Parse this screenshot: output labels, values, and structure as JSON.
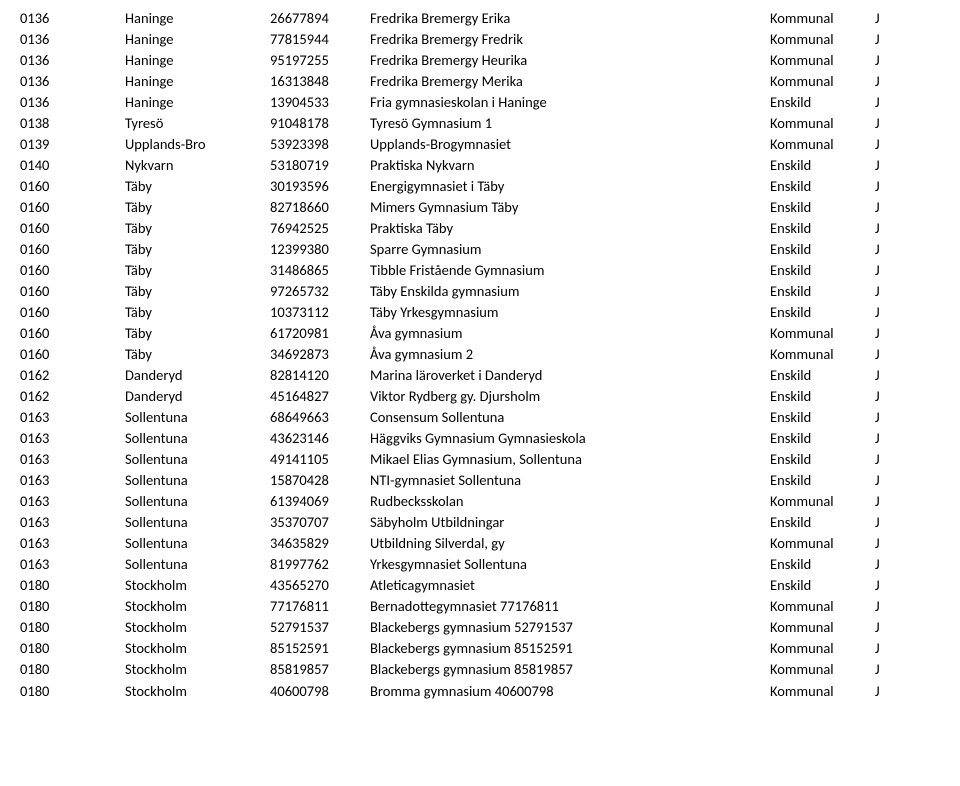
{
  "table": {
    "rows": [
      [
        "0136",
        "Haninge",
        "26677894",
        "Fredrika Bremergy Erika",
        "Kommunal",
        "J"
      ],
      [
        "0136",
        "Haninge",
        "77815944",
        "Fredrika Bremergy Fredrik",
        "Kommunal",
        "J"
      ],
      [
        "0136",
        "Haninge",
        "95197255",
        "Fredrika Bremergy Heurika",
        "Kommunal",
        "J"
      ],
      [
        "0136",
        "Haninge",
        "16313848",
        "Fredrika Bremergy Merika",
        "Kommunal",
        "J"
      ],
      [
        "0136",
        "Haninge",
        "13904533",
        "Fria gymnasieskolan i Haninge",
        "Enskild",
        "J"
      ],
      [
        "0138",
        "Tyresö",
        "91048178",
        "Tyresö Gymnasium 1",
        "Kommunal",
        "J"
      ],
      [
        "0139",
        "Upplands-Bro",
        "53923398",
        "Upplands-Brogymnasiet",
        "Kommunal",
        "J"
      ],
      [
        "0140",
        "Nykvarn",
        "53180719",
        "Praktiska Nykvarn",
        "Enskild",
        "J"
      ],
      [
        "0160",
        "Täby",
        "30193596",
        "Energigymnasiet i Täby",
        "Enskild",
        "J"
      ],
      [
        "0160",
        "Täby",
        "82718660",
        "Mimers Gymnasium Täby",
        "Enskild",
        "J"
      ],
      [
        "0160",
        "Täby",
        "76942525",
        "Praktiska Täby",
        "Enskild",
        "J"
      ],
      [
        "0160",
        "Täby",
        "12399380",
        "Sparre Gymnasium",
        "Enskild",
        "J"
      ],
      [
        "0160",
        "Täby",
        "31486865",
        "Tibble Fristående Gymnasium",
        "Enskild",
        "J"
      ],
      [
        "0160",
        "Täby",
        "97265732",
        "Täby Enskilda gymnasium",
        "Enskild",
        "J"
      ],
      [
        "0160",
        "Täby",
        "10373112",
        "Täby Yrkesgymnasium",
        "Enskild",
        "J"
      ],
      [
        "0160",
        "Täby",
        "61720981",
        "Åva gymnasium",
        "Kommunal",
        "J"
      ],
      [
        "0160",
        "Täby",
        "34692873",
        "Åva gymnasium 2",
        "Kommunal",
        "J"
      ],
      [
        "0162",
        "Danderyd",
        "82814120",
        "Marina läroverket i Danderyd",
        "Enskild",
        "J"
      ],
      [
        "0162",
        "Danderyd",
        "45164827",
        "Viktor Rydberg gy. Djursholm",
        "Enskild",
        "J"
      ],
      [
        "0163",
        "Sollentuna",
        "68649663",
        "Consensum Sollentuna",
        "Enskild",
        "J"
      ],
      [
        "0163",
        "Sollentuna",
        "43623146",
        "Häggviks Gymnasium Gymnasieskola",
        "Enskild",
        "J"
      ],
      [
        "0163",
        "Sollentuna",
        "49141105",
        "Mikael Elias Gymnasium, Sollentuna",
        "Enskild",
        "J"
      ],
      [
        "0163",
        "Sollentuna",
        "15870428",
        "NTI-gymnasiet Sollentuna",
        "Enskild",
        "J"
      ],
      [
        "0163",
        "Sollentuna",
        "61394069",
        "Rudbecksskolan",
        "Kommunal",
        "J"
      ],
      [
        "0163",
        "Sollentuna",
        "35370707",
        "Säbyholm Utbildningar",
        "Enskild",
        "J"
      ],
      [
        "0163",
        "Sollentuna",
        "34635829",
        "Utbildning Silverdal, gy",
        "Kommunal",
        "J"
      ],
      [
        "0163",
        "Sollentuna",
        "81997762",
        "Yrkesgymnasiet Sollentuna",
        "Enskild",
        "J"
      ],
      [
        "0180",
        "Stockholm",
        "43565270",
        "Atleticagymnasiet",
        "Enskild",
        "J"
      ],
      [
        "0180",
        "Stockholm",
        "77176811",
        "Bernadottegymnasiet 77176811",
        "Kommunal",
        "J"
      ],
      [
        "0180",
        "Stockholm",
        "52791537",
        "Blackebergs gymnasium 52791537",
        "Kommunal",
        "J"
      ],
      [
        "0180",
        "Stockholm",
        "85152591",
        "Blackebergs gymnasium 85152591",
        "Kommunal",
        "J"
      ],
      [
        "0180",
        "Stockholm",
        "85819857",
        "Blackebergs gymnasium 85819857",
        "Kommunal",
        "J"
      ],
      [
        "0180",
        "Stockholm",
        "40600798",
        "Bromma gymnasium 40600798",
        "Kommunal",
        "J"
      ]
    ]
  }
}
